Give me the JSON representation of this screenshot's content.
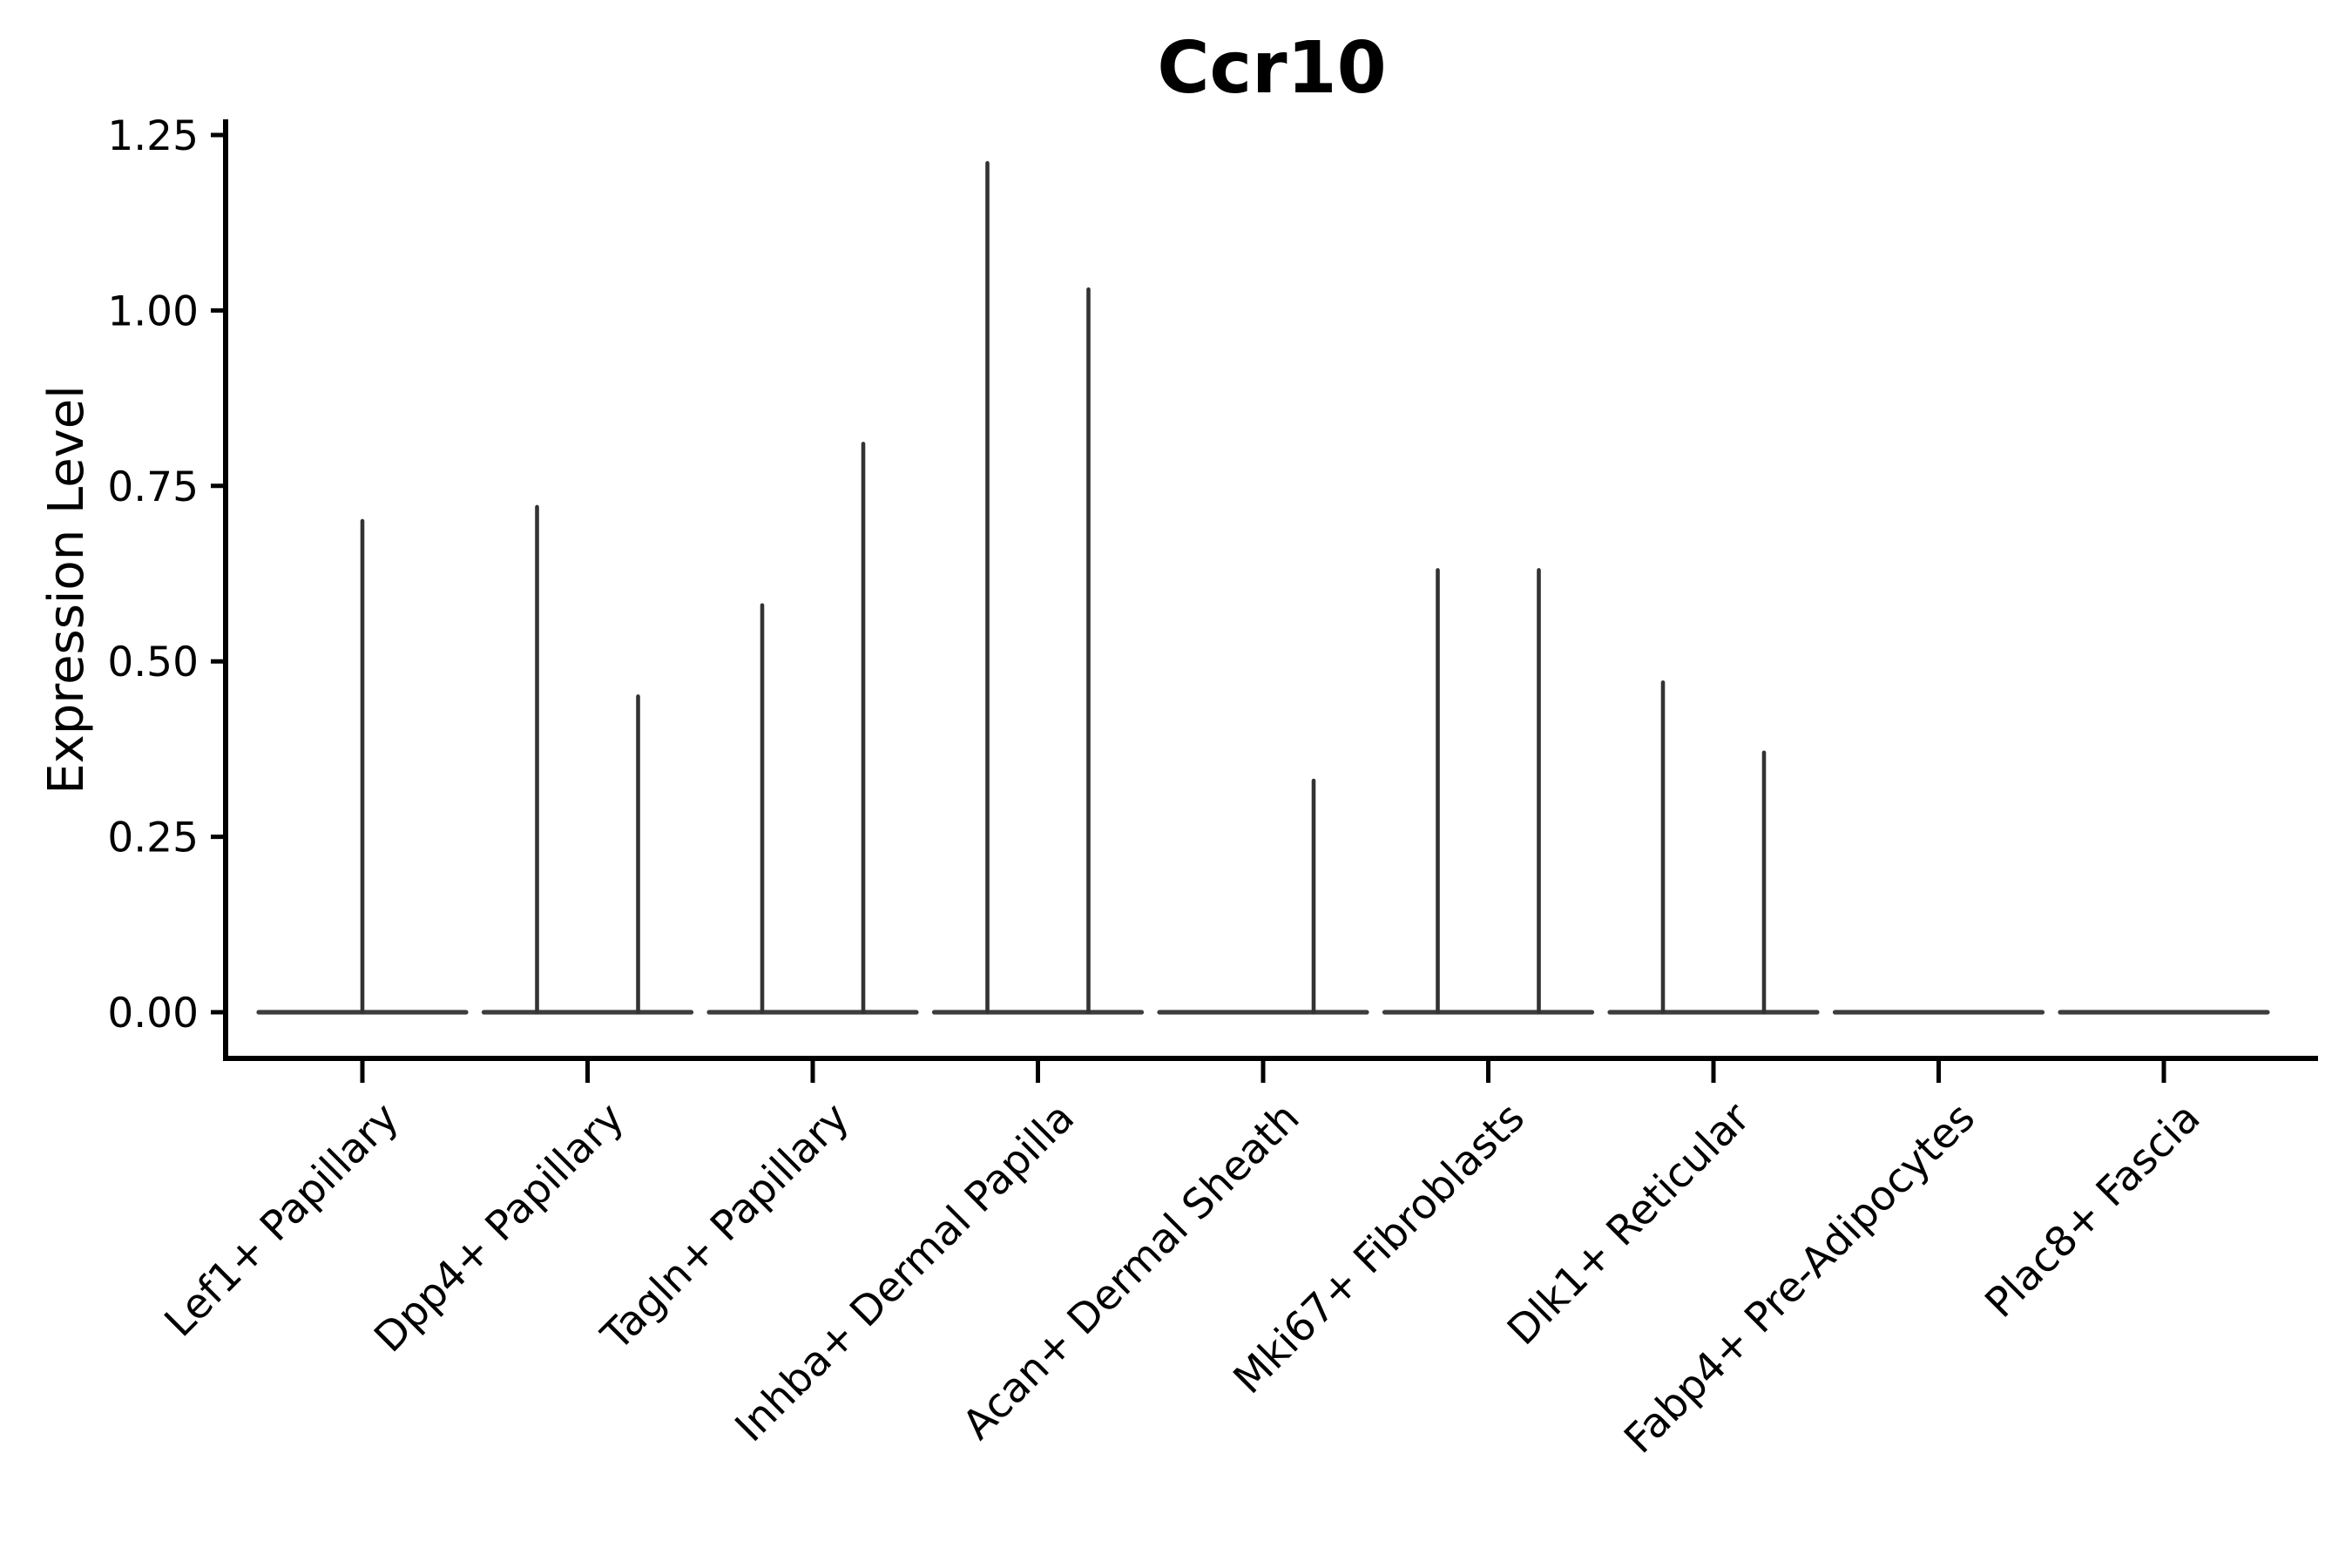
{
  "chart_data": {
    "type": "violin",
    "title": "Ccr10",
    "ylabel": "Expression Level",
    "xlabel": "",
    "ylim": [
      0,
      1.25
    ],
    "grid": false,
    "legend": null,
    "axis": {
      "yticks": [
        0.0,
        0.25,
        0.5,
        0.75,
        1.0,
        1.25
      ],
      "ytick_labels": [
        "0.00",
        "0.25",
        "0.50",
        "0.75",
        "1.00",
        "1.25"
      ]
    },
    "categories": [
      "Lef1+ Papillary",
      "Dpp4+ Papillary",
      "Tagln+ Papillary",
      "Inhba+ Dermal Papilla",
      "Acan+ Dermal Sheath",
      "Mki67+ Fibroblasts",
      "Dlk1+ Reticular",
      "Fabp4+ Pre-Adipocytes",
      "Plac8+ Fascia"
    ],
    "violins": [
      {
        "category": "Lef1+ Papillary",
        "baseline": 0,
        "spikes": [
          {
            "pos": "center",
            "max": 0.7
          }
        ]
      },
      {
        "category": "Dpp4+ Papillary",
        "baseline": 0,
        "spikes": [
          {
            "pos": "left",
            "max": 0.72
          },
          {
            "pos": "right",
            "max": 0.45
          }
        ]
      },
      {
        "category": "Tagln+ Papillary",
        "baseline": 0,
        "spikes": [
          {
            "pos": "left",
            "max": 0.58
          },
          {
            "pos": "right",
            "max": 0.81
          }
        ]
      },
      {
        "category": "Inhba+ Dermal Papilla",
        "baseline": 0,
        "spikes": [
          {
            "pos": "left",
            "max": 1.21
          },
          {
            "pos": "right",
            "max": 1.03
          }
        ]
      },
      {
        "category": "Acan+ Dermal Sheath",
        "baseline": 0,
        "spikes": [
          {
            "pos": "right",
            "max": 0.33
          }
        ]
      },
      {
        "category": "Mki67+ Fibroblasts",
        "baseline": 0,
        "spikes": [
          {
            "pos": "left",
            "max": 0.63
          },
          {
            "pos": "right",
            "max": 0.63
          }
        ]
      },
      {
        "category": "Dlk1+ Reticular",
        "baseline": 0,
        "spikes": [
          {
            "pos": "left",
            "max": 0.47
          },
          {
            "pos": "right",
            "max": 0.37
          }
        ]
      },
      {
        "category": "Fabp4+ Pre-Adipocytes",
        "baseline": 0,
        "spikes": []
      },
      {
        "category": "Plac8+ Fascia",
        "baseline": 0,
        "spikes": []
      }
    ],
    "colors": {
      "violin_stroke": "#333333",
      "baseline_stroke": "#3d3d3d",
      "spine": "#000000",
      "text": "#000000",
      "background": "#ffffff"
    }
  }
}
